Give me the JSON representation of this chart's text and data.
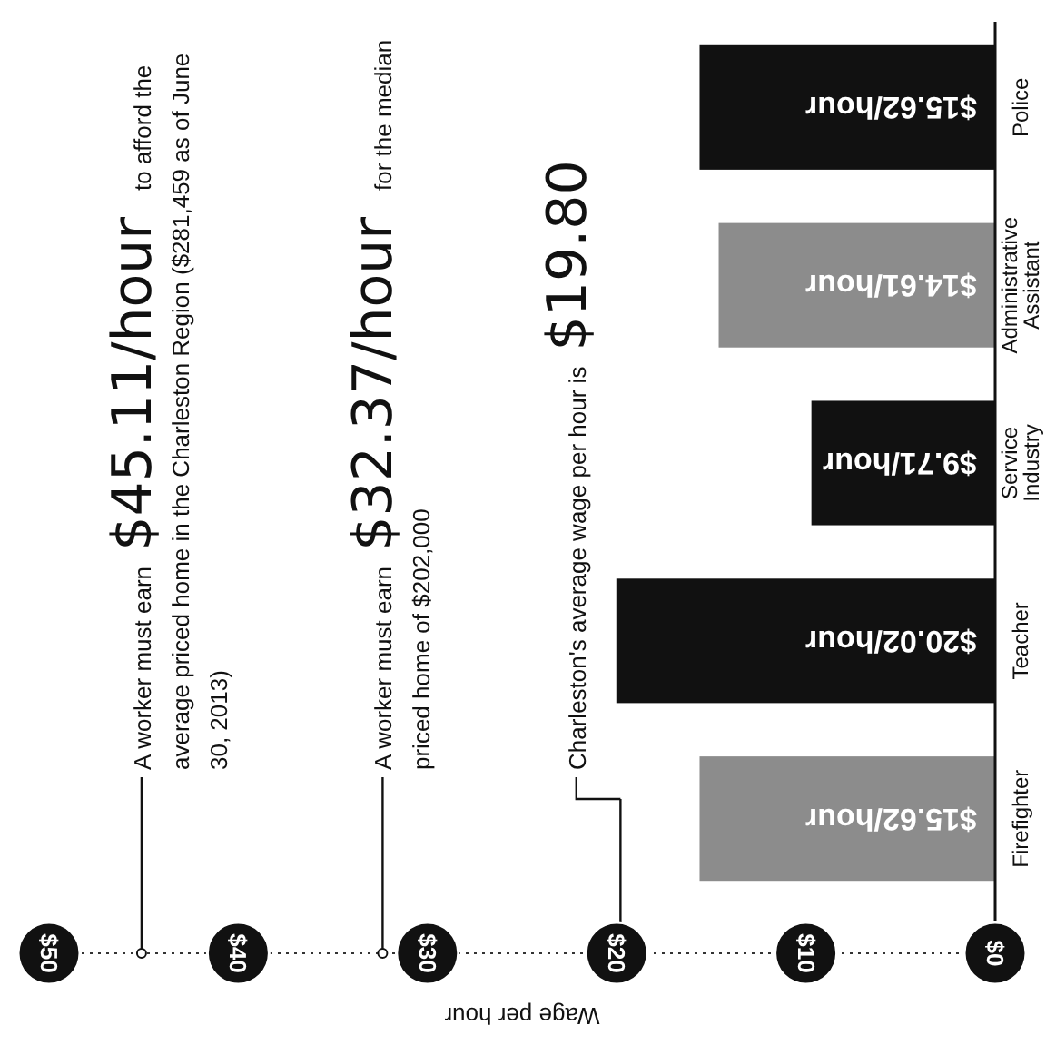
{
  "chart_data": {
    "type": "bar",
    "orientation": "horizontal",
    "xlabel": "Wage per hour",
    "categories": [
      "Police",
      "Administrative Assistant",
      "Service Industry",
      "Teacher",
      "Firefighter"
    ],
    "values": [
      15.62,
      14.61,
      9.71,
      20.02,
      15.62
    ],
    "colors": [
      "#111111",
      "#8c8c8c",
      "#111111",
      "#111111",
      "#8c8c8c"
    ],
    "value_labels": [
      "$15.62/hour",
      "$14.61/hour",
      "$9.71/hour",
      "$20.02/hour",
      "$15.62/hour"
    ],
    "xlim": [
      50,
      0
    ],
    "xticks": [
      {
        "value": 50,
        "label": "$50"
      },
      {
        "value": 40,
        "label": "$40"
      },
      {
        "value": 30,
        "label": "$30"
      },
      {
        "value": 20,
        "label": "$20"
      },
      {
        "value": 10,
        "label": "$10"
      },
      {
        "value": 0,
        "label": "$0"
      }
    ],
    "ref_lines": [
      {
        "axis": "x",
        "value": 45.11,
        "label": "A worker must earn $45.11/hour to afford the average priced home in the Charleston Region ($281,459 as of June 30, 2013)"
      },
      {
        "axis": "x",
        "value": 32.37,
        "label": "A worker must earn $32.37/hour for the median priced home of $202,000"
      },
      {
        "axis": "x",
        "value": 19.8,
        "label": "Charleston's average wage per hour is $19.80"
      }
    ],
    "tick_labels": "x",
    "grid": false
  }
}
